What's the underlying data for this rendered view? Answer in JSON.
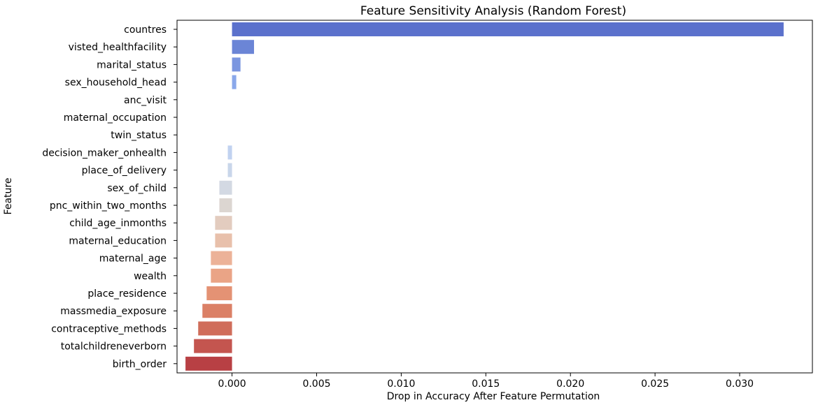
{
  "chart_data": {
    "type": "bar",
    "orientation": "horizontal",
    "title": "Feature Sensitivity Analysis (Random Forest)",
    "xlabel": "Drop in Accuracy After Feature Permutation",
    "ylabel": "Feature",
    "categories": [
      "countres",
      "visted_healthfacility",
      "marital_status",
      "sex_household_head",
      "anc_visit",
      "maternal_occupation",
      "twin_status",
      "decision_maker_onhealth",
      "place_of_delivery",
      "sex_of_child",
      "pnc_within_two_months",
      "child_age_inmonths",
      "maternal_education",
      "maternal_age",
      "wealth",
      "place_residence",
      "massmedia_exposure",
      "contraceptive_methods",
      "totalchildreneverborn",
      "birth_order"
    ],
    "values": [
      0.0326,
      0.0013,
      0.0005,
      0.00025,
      0.0,
      0.0,
      0.0,
      -0.00025,
      -0.00025,
      -0.00075,
      -0.00075,
      -0.001,
      -0.001,
      -0.00125,
      -0.00125,
      -0.0015,
      -0.00175,
      -0.002,
      -0.00225,
      -0.00275
    ],
    "colors": [
      "#5b71cc",
      "#6b85d6",
      "#7b96e0",
      "#8aa8ea",
      "#9cb7ef",
      "#acc5f2",
      "#b8cdf3",
      "#c1d2f0",
      "#c9d6ea",
      "#d3d9e3",
      "#dcd6d1",
      "#e3ccbf",
      "#e8c0ab",
      "#ecb298",
      "#eaa486",
      "#e49274",
      "#db8066",
      "#d06d5a",
      "#c4554f",
      "#b84044"
    ],
    "xticks": [
      "0.000",
      "0.005",
      "0.010",
      "0.015",
      "0.020",
      "0.025",
      "0.030"
    ],
    "xtick_values": [
      0,
      0.005,
      0.01,
      0.015,
      0.02,
      0.025,
      0.03
    ],
    "xlim": [
      -0.00325,
      0.0343
    ],
    "grid": false,
    "legend": "none"
  }
}
